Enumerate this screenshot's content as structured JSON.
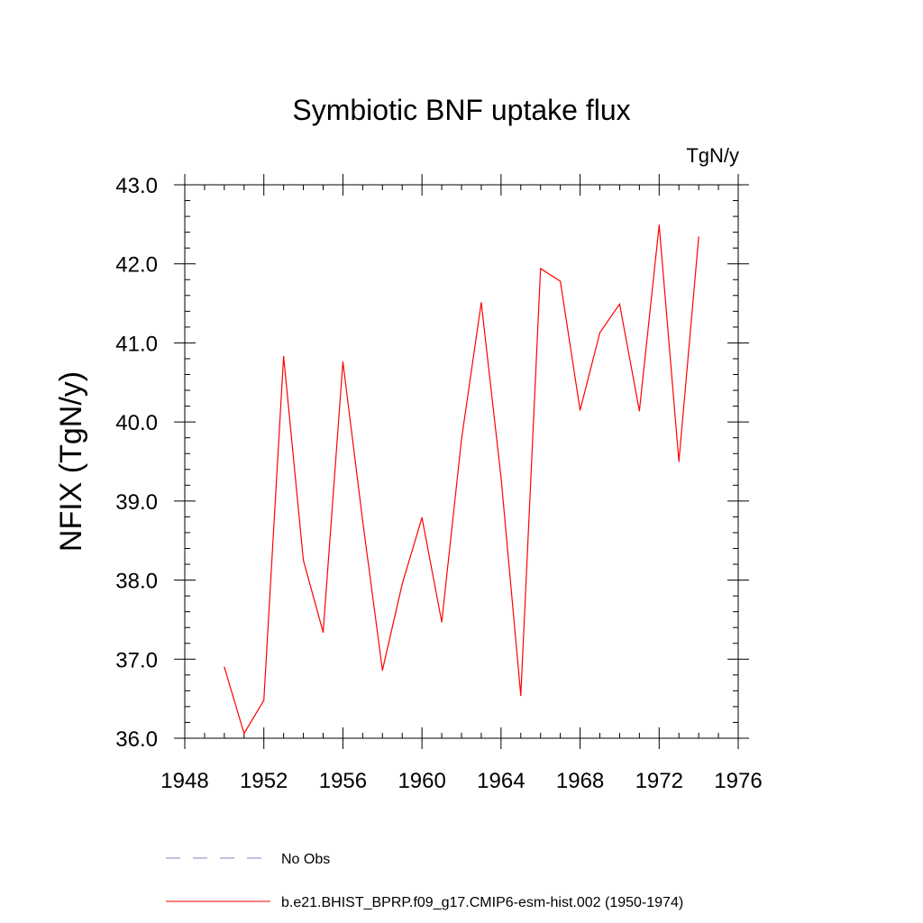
{
  "chart_data": {
    "type": "line",
    "title": "Symbiotic BNF uptake flux",
    "units_label": "TgN/y",
    "xlabel": "",
    "ylabel": "NFIX  (TgN/y)",
    "xlim": [
      1948,
      1976
    ],
    "ylim": [
      36.0,
      43.0
    ],
    "x_ticks": [
      "1948",
      "1952",
      "1956",
      "1960",
      "1964",
      "1968",
      "1972",
      "1976"
    ],
    "y_ticks": [
      "36.0",
      "37.0",
      "38.0",
      "39.0",
      "40.0",
      "41.0",
      "42.0",
      "43.0"
    ],
    "grid": false,
    "legend_position": "bottom",
    "series": [
      {
        "name": "b.e21.BHIST_BPRP.f09_g17.CMIP6-esm-hist.002 (1950-1974)",
        "color": "#ff0000",
        "style": "solid",
        "x": [
          1950,
          1951,
          1952,
          1953,
          1954,
          1955,
          1956,
          1957,
          1958,
          1959,
          1960,
          1961,
          1962,
          1963,
          1964,
          1965,
          1966,
          1967,
          1968,
          1969,
          1970,
          1971,
          1972,
          1973,
          1974
        ],
        "values": [
          36.9,
          36.06,
          36.48,
          40.83,
          38.25,
          37.34,
          40.76,
          38.75,
          36.86,
          37.95,
          38.79,
          37.47,
          39.78,
          41.51,
          39.3,
          36.54,
          41.94,
          41.78,
          40.15,
          41.13,
          41.49,
          40.14,
          42.49,
          39.5,
          42.34
        ]
      },
      {
        "name": "No Obs",
        "color": "#8080c0",
        "style": "dashed",
        "x": [],
        "values": []
      }
    ]
  }
}
